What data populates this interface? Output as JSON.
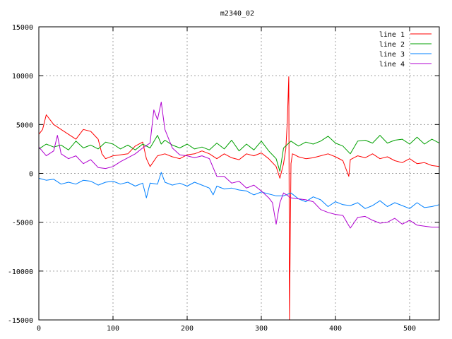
{
  "chart_data": {
    "type": "line",
    "title": "m2340_02",
    "xlabel": "",
    "ylabel": "",
    "xlim": [
      0,
      540
    ],
    "ylim": [
      -15000,
      15000
    ],
    "xticks": [
      "0",
      "100",
      "200",
      "300",
      "400",
      "500"
    ],
    "yticks": [
      "15000",
      "10000",
      "5000",
      "0",
      "-5000",
      "-10000",
      "-15000"
    ],
    "grid": true,
    "legend_position": "top-right",
    "series": [
      {
        "name": "line 1",
        "color": "#ff0000",
        "x": [
          0,
          5,
          10,
          15,
          20,
          30,
          40,
          50,
          60,
          70,
          80,
          85,
          90,
          100,
          110,
          120,
          130,
          140,
          145,
          150,
          160,
          170,
          180,
          190,
          200,
          210,
          220,
          230,
          240,
          250,
          260,
          270,
          280,
          290,
          300,
          310,
          320,
          325,
          330,
          333,
          335,
          337,
          338,
          340,
          342,
          345,
          350,
          360,
          370,
          380,
          390,
          400,
          410,
          418,
          420,
          430,
          440,
          450,
          460,
          470,
          480,
          490,
          500,
          510,
          520,
          530,
          540
        ],
        "values": [
          4000,
          4500,
          6000,
          5500,
          5000,
          4500,
          4000,
          3500,
          4500,
          4300,
          3500,
          2000,
          1500,
          1800,
          1900,
          2000,
          2800,
          3200,
          1500,
          700,
          1800,
          2000,
          1700,
          1500,
          1900,
          2000,
          2300,
          2000,
          1500,
          2000,
          1600,
          1400,
          2000,
          1800,
          2100,
          1500,
          700,
          -500,
          1000,
          2500,
          5300,
          9900,
          -15000,
          1000,
          2000,
          1900,
          1700,
          1500,
          1600,
          1800,
          2000,
          1700,
          1300,
          -300,
          1400,
          1800,
          1600,
          2000,
          1500,
          1700,
          1300,
          1100,
          1500,
          1000,
          1100,
          800,
          700
        ]
      },
      {
        "name": "line 2",
        "color": "#00a000",
        "x": [
          0,
          10,
          20,
          30,
          40,
          50,
          60,
          70,
          80,
          90,
          100,
          110,
          120,
          130,
          140,
          150,
          160,
          165,
          170,
          180,
          190,
          200,
          210,
          220,
          230,
          240,
          250,
          260,
          270,
          280,
          290,
          300,
          310,
          320,
          325,
          330,
          340,
          350,
          360,
          370,
          380,
          390,
          400,
          410,
          420,
          430,
          440,
          450,
          460,
          470,
          480,
          490,
          500,
          510,
          520,
          530,
          540
        ],
        "values": [
          2500,
          3000,
          2700,
          2900,
          2400,
          3300,
          2600,
          2900,
          2500,
          3200,
          3000,
          2500,
          2900,
          2400,
          3000,
          2600,
          3900,
          3000,
          3400,
          2900,
          2600,
          3000,
          2500,
          2700,
          2400,
          3100,
          2500,
          3400,
          2300,
          3000,
          2400,
          3300,
          2300,
          1500,
          200,
          2600,
          3300,
          2800,
          3200,
          3000,
          3300,
          3800,
          3100,
          2800,
          2000,
          3300,
          3400,
          3100,
          3900,
          3100,
          3400,
          3500,
          3000,
          3700,
          3000,
          3500,
          3100
        ]
      },
      {
        "name": "line 3",
        "color": "#0080ff",
        "x": [
          0,
          10,
          20,
          30,
          40,
          50,
          60,
          70,
          80,
          90,
          100,
          110,
          120,
          130,
          140,
          145,
          150,
          160,
          165,
          170,
          180,
          190,
          200,
          210,
          220,
          230,
          235,
          240,
          250,
          260,
          270,
          280,
          290,
          300,
          310,
          320,
          330,
          340,
          350,
          360,
          370,
          380,
          390,
          400,
          410,
          420,
          430,
          440,
          450,
          460,
          470,
          480,
          490,
          500,
          510,
          520,
          530,
          540
        ],
        "values": [
          -500,
          -700,
          -600,
          -1100,
          -900,
          -1100,
          -700,
          -800,
          -1200,
          -900,
          -800,
          -1100,
          -900,
          -1300,
          -1000,
          -2500,
          -1000,
          -1100,
          100,
          -900,
          -1200,
          -1000,
          -1300,
          -900,
          -1200,
          -1500,
          -2200,
          -1300,
          -1600,
          -1500,
          -1700,
          -1800,
          -2200,
          -1900,
          -2100,
          -2300,
          -2300,
          -2000,
          -2600,
          -2900,
          -2400,
          -2700,
          -3400,
          -2900,
          -3200,
          -3300,
          -3000,
          -3600,
          -3300,
          -2800,
          -3400,
          -3000,
          -3300,
          -3600,
          -3000,
          -3500,
          -3400,
          -3200
        ]
      },
      {
        "name": "line 4",
        "color": "#b000d0",
        "x": [
          0,
          10,
          20,
          25,
          30,
          40,
          50,
          60,
          70,
          80,
          90,
          100,
          110,
          120,
          130,
          140,
          150,
          155,
          160,
          165,
          170,
          180,
          190,
          200,
          210,
          220,
          230,
          240,
          250,
          260,
          270,
          280,
          290,
          300,
          310,
          315,
          320,
          325,
          330,
          340,
          350,
          360,
          370,
          380,
          390,
          400,
          410,
          420,
          430,
          440,
          450,
          460,
          470,
          480,
          490,
          500,
          510,
          520,
          530,
          540
        ],
        "values": [
          2700,
          1800,
          2300,
          3900,
          2000,
          1500,
          1800,
          1000,
          1400,
          600,
          500,
          700,
          1200,
          1600,
          2000,
          2600,
          3100,
          6500,
          5500,
          7300,
          4500,
          2600,
          1900,
          1800,
          1600,
          1800,
          1500,
          -300,
          -300,
          -1000,
          -800,
          -1500,
          -1200,
          -1800,
          -2500,
          -3000,
          -5200,
          -3000,
          -2000,
          -2500,
          -2600,
          -2700,
          -2900,
          -3700,
          -4000,
          -4200,
          -4300,
          -5600,
          -4500,
          -4400,
          -4800,
          -5100,
          -5000,
          -4600,
          -5200,
          -4800,
          -5300,
          -5400,
          -5500,
          -5500
        ]
      }
    ]
  }
}
